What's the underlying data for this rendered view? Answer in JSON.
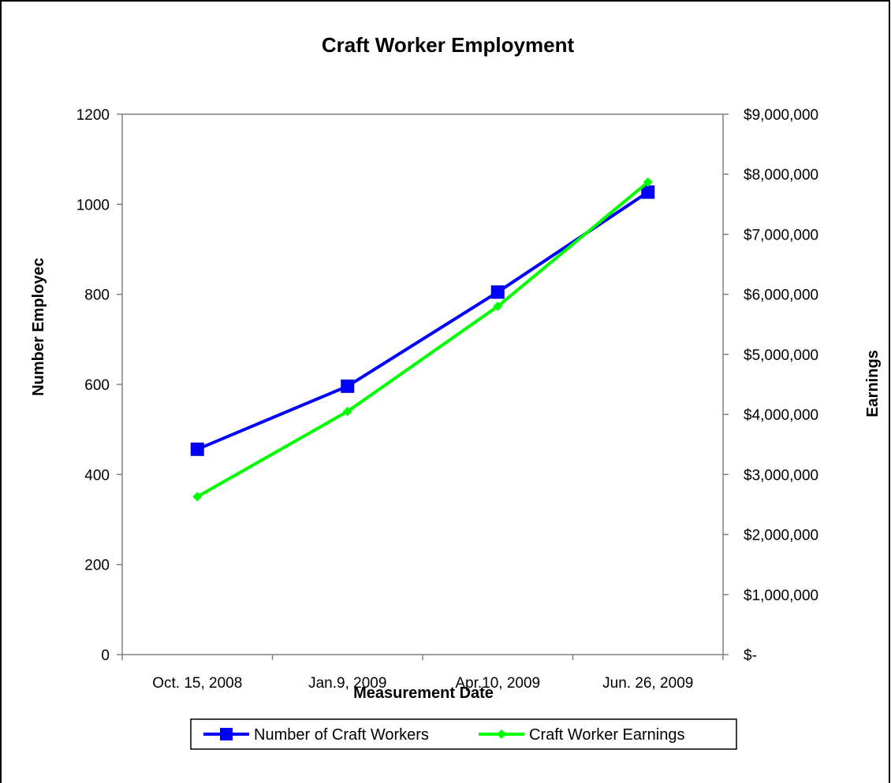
{
  "chart_data": {
    "type": "line",
    "title": "Craft Worker Employment",
    "xlabel": "Measurement Date",
    "ylabel": "Number Employec",
    "y2label": "Earnings",
    "categories": [
      "Oct. 15, 2008",
      "Jan.9, 2009",
      "Apr.10, 2009",
      "Jun. 26, 2009"
    ],
    "ylim": [
      0,
      1200
    ],
    "y_ticks": [
      0,
      200,
      400,
      600,
      800,
      1000,
      1200
    ],
    "y_tick_labels": [
      "0",
      "200",
      "400",
      "600",
      "800",
      "1000",
      "1200"
    ],
    "y2lim": [
      0,
      9000000
    ],
    "y2_ticks": [
      0,
      1000000,
      2000000,
      3000000,
      4000000,
      5000000,
      6000000,
      7000000,
      8000000,
      9000000
    ],
    "y2_tick_labels": [
      "$-",
      "$1,000,000",
      "$2,000,000",
      "$3,000,000",
      "$4,000,000",
      "$5,000,000",
      "$6,000,000",
      "$7,000,000",
      "$8,000,000",
      "$9,000,000"
    ],
    "grid": false,
    "legend_position": "bottom",
    "series": [
      {
        "name": "Number of Craft Workers",
        "axis": "left",
        "values": [
          456,
          596,
          805,
          1027
        ],
        "color": "#0000ff",
        "marker": "square"
      },
      {
        "name": "Craft Worker Earnings",
        "axis": "right",
        "values": [
          2630000,
          4050000,
          5800000,
          7870000
        ],
        "color": "#00ff00",
        "marker": "diamond"
      }
    ]
  }
}
